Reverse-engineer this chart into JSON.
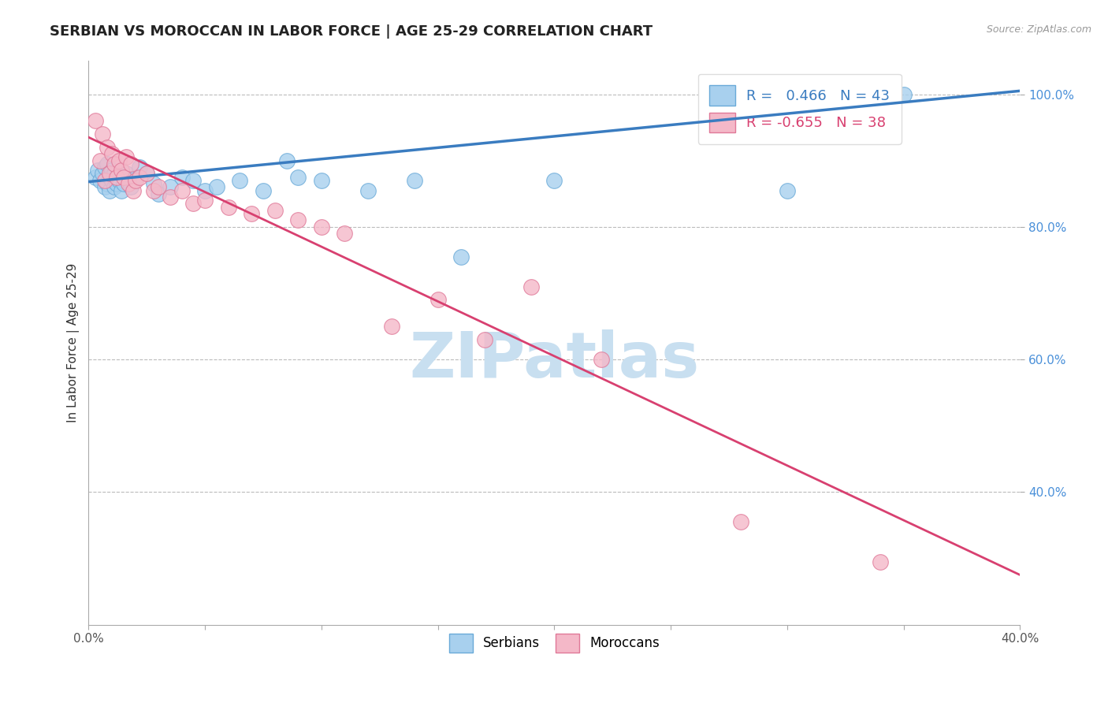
{
  "title": "SERBIAN VS MOROCCAN IN LABOR FORCE | AGE 25-29 CORRELATION CHART",
  "source": "Source: ZipAtlas.com",
  "ylabel": "In Labor Force | Age 25-29",
  "xlim": [
    0.0,
    0.4
  ],
  "ylim": [
    0.2,
    1.05
  ],
  "serbian_color": "#A8D0EE",
  "moroccan_color": "#F4B8C8",
  "serbian_edge": "#6AAAD8",
  "moroccan_edge": "#E07898",
  "serbian_line_color": "#3A7CC0",
  "moroccan_line_color": "#D84070",
  "grid_color": "#BBBBBB",
  "serbian_R": 0.466,
  "serbian_N": 43,
  "moroccan_R": -0.655,
  "moroccan_N": 38,
  "serbian_line_x0": 0.0,
  "serbian_line_y0": 0.868,
  "serbian_line_x1": 0.4,
  "serbian_line_y1": 1.005,
  "moroccan_line_x0": 0.0,
  "moroccan_line_y0": 0.935,
  "moroccan_line_x1": 0.4,
  "moroccan_line_y1": 0.275,
  "serbian_points_x": [
    0.003,
    0.004,
    0.005,
    0.006,
    0.007,
    0.007,
    0.008,
    0.008,
    0.009,
    0.009,
    0.01,
    0.01,
    0.011,
    0.011,
    0.012,
    0.012,
    0.013,
    0.014,
    0.015,
    0.016,
    0.017,
    0.018,
    0.02,
    0.022,
    0.025,
    0.028,
    0.03,
    0.035,
    0.04,
    0.045,
    0.05,
    0.055,
    0.065,
    0.075,
    0.085,
    0.09,
    0.1,
    0.12,
    0.14,
    0.16,
    0.2,
    0.3,
    0.35
  ],
  "serbian_points_y": [
    0.875,
    0.885,
    0.87,
    0.88,
    0.89,
    0.86,
    0.895,
    0.865,
    0.875,
    0.855,
    0.885,
    0.87,
    0.88,
    0.86,
    0.875,
    0.865,
    0.87,
    0.855,
    0.865,
    0.88,
    0.87,
    0.86,
    0.875,
    0.89,
    0.88,
    0.865,
    0.85,
    0.86,
    0.875,
    0.87,
    0.855,
    0.86,
    0.87,
    0.855,
    0.9,
    0.875,
    0.87,
    0.855,
    0.87,
    0.755,
    0.87,
    0.855,
    1.0
  ],
  "moroccan_points_x": [
    0.003,
    0.005,
    0.006,
    0.007,
    0.008,
    0.009,
    0.01,
    0.011,
    0.012,
    0.013,
    0.014,
    0.015,
    0.016,
    0.017,
    0.018,
    0.019,
    0.02,
    0.022,
    0.025,
    0.028,
    0.03,
    0.035,
    0.04,
    0.045,
    0.05,
    0.06,
    0.07,
    0.08,
    0.09,
    0.1,
    0.11,
    0.13,
    0.15,
    0.17,
    0.19,
    0.22,
    0.28,
    0.34
  ],
  "moroccan_points_y": [
    0.96,
    0.9,
    0.94,
    0.87,
    0.92,
    0.88,
    0.91,
    0.895,
    0.875,
    0.9,
    0.885,
    0.875,
    0.905,
    0.865,
    0.895,
    0.855,
    0.87,
    0.875,
    0.88,
    0.855,
    0.86,
    0.845,
    0.855,
    0.835,
    0.84,
    0.83,
    0.82,
    0.825,
    0.81,
    0.8,
    0.79,
    0.65,
    0.69,
    0.63,
    0.71,
    0.6,
    0.355,
    0.295
  ],
  "watermark_text": "ZIPatlas",
  "watermark_color": "#C8DFF0",
  "background_color": "#FFFFFF"
}
